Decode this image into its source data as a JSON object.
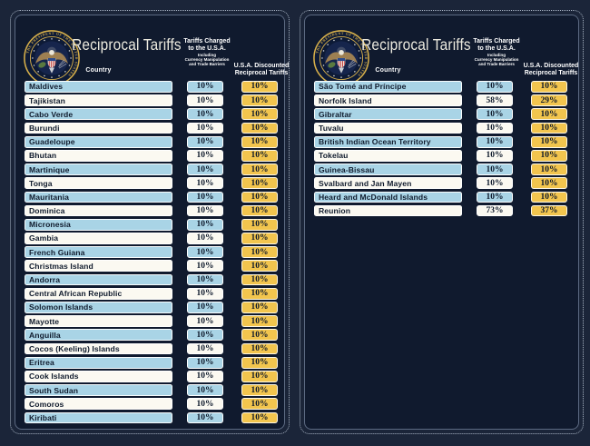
{
  "colors": {
    "page_bg": "#1b2539",
    "panel_bg": "#101a2e",
    "dotted_border": "#aab6c6",
    "inner_border": "#5c6a82",
    "row_blue": "#a9d4e6",
    "row_white": "#fbf9f1",
    "gold": "#f2c54e",
    "text_dark": "#0f1a2c",
    "title_text": "#eceadf",
    "header_text": "#ffffff",
    "seal_gold": "#d8b04a",
    "seal_navy": "#0d1a36"
  },
  "header": {
    "title": "Reciprocal Tariffs",
    "country_label": "Country",
    "charged_label_line1": "Tariffs Charged",
    "charged_label_line2": "to the U.S.A.",
    "charged_sublabel_line1": "Including",
    "charged_sublabel_line2": "Currency Manipulation",
    "charged_sublabel_line3": "and Trade Barriers",
    "discounted_label_line1": "U.S.A. Discounted",
    "discounted_label_line2": "Reciprocal Tariffs",
    "seal_ring_text": "THE PRESIDENT OF THE UNITED STATES"
  },
  "chart_data": [
    {
      "type": "table",
      "title": "Reciprocal Tariffs",
      "columns": [
        "Country",
        "Tariffs Charged to the U.S.A. Including Currency Manipulation and Trade Barriers",
        "U.S.A. Discounted Reciprocal Tariffs"
      ],
      "rows": [
        [
          "Maldives",
          "10%",
          "10%"
        ],
        [
          "Tajikistan",
          "10%",
          "10%"
        ],
        [
          "Cabo Verde",
          "10%",
          "10%"
        ],
        [
          "Burundi",
          "10%",
          "10%"
        ],
        [
          "Guadeloupe",
          "10%",
          "10%"
        ],
        [
          "Bhutan",
          "10%",
          "10%"
        ],
        [
          "Martinique",
          "10%",
          "10%"
        ],
        [
          "Tonga",
          "10%",
          "10%"
        ],
        [
          "Mauritania",
          "10%",
          "10%"
        ],
        [
          "Dominica",
          "10%",
          "10%"
        ],
        [
          "Micronesia",
          "10%",
          "10%"
        ],
        [
          "Gambia",
          "10%",
          "10%"
        ],
        [
          "French Guiana",
          "10%",
          "10%"
        ],
        [
          "Christmas Island",
          "10%",
          "10%"
        ],
        [
          "Andorra",
          "10%",
          "10%"
        ],
        [
          "Central African Republic",
          "10%",
          "10%"
        ],
        [
          "Solomon Islands",
          "10%",
          "10%"
        ],
        [
          "Mayotte",
          "10%",
          "10%"
        ],
        [
          "Anguilla",
          "10%",
          "10%"
        ],
        [
          "Cocos (Keeling) Islands",
          "10%",
          "10%"
        ],
        [
          "Eritrea",
          "10%",
          "10%"
        ],
        [
          "Cook Islands",
          "10%",
          "10%"
        ],
        [
          "South Sudan",
          "10%",
          "10%"
        ],
        [
          "Comoros",
          "10%",
          "10%"
        ],
        [
          "Kiribati",
          "10%",
          "10%"
        ]
      ]
    },
    {
      "type": "table",
      "title": "Reciprocal Tariffs",
      "columns": [
        "Country",
        "Tariffs Charged to the U.S.A. Including Currency Manipulation and Trade Barriers",
        "U.S.A. Discounted Reciprocal Tariffs"
      ],
      "rows": [
        [
          "São Tomé and Príncipe",
          "10%",
          "10%"
        ],
        [
          "Norfolk Island",
          "58%",
          "29%"
        ],
        [
          "Gibraltar",
          "10%",
          "10%"
        ],
        [
          "Tuvalu",
          "10%",
          "10%"
        ],
        [
          "British Indian Ocean Territory",
          "10%",
          "10%"
        ],
        [
          "Tokelau",
          "10%",
          "10%"
        ],
        [
          "Guinea-Bissau",
          "10%",
          "10%"
        ],
        [
          "Svalbard and Jan Mayen",
          "10%",
          "10%"
        ],
        [
          "Heard and McDonald Islands",
          "10%",
          "10%"
        ],
        [
          "Reunion",
          "73%",
          "37%"
        ]
      ]
    }
  ]
}
